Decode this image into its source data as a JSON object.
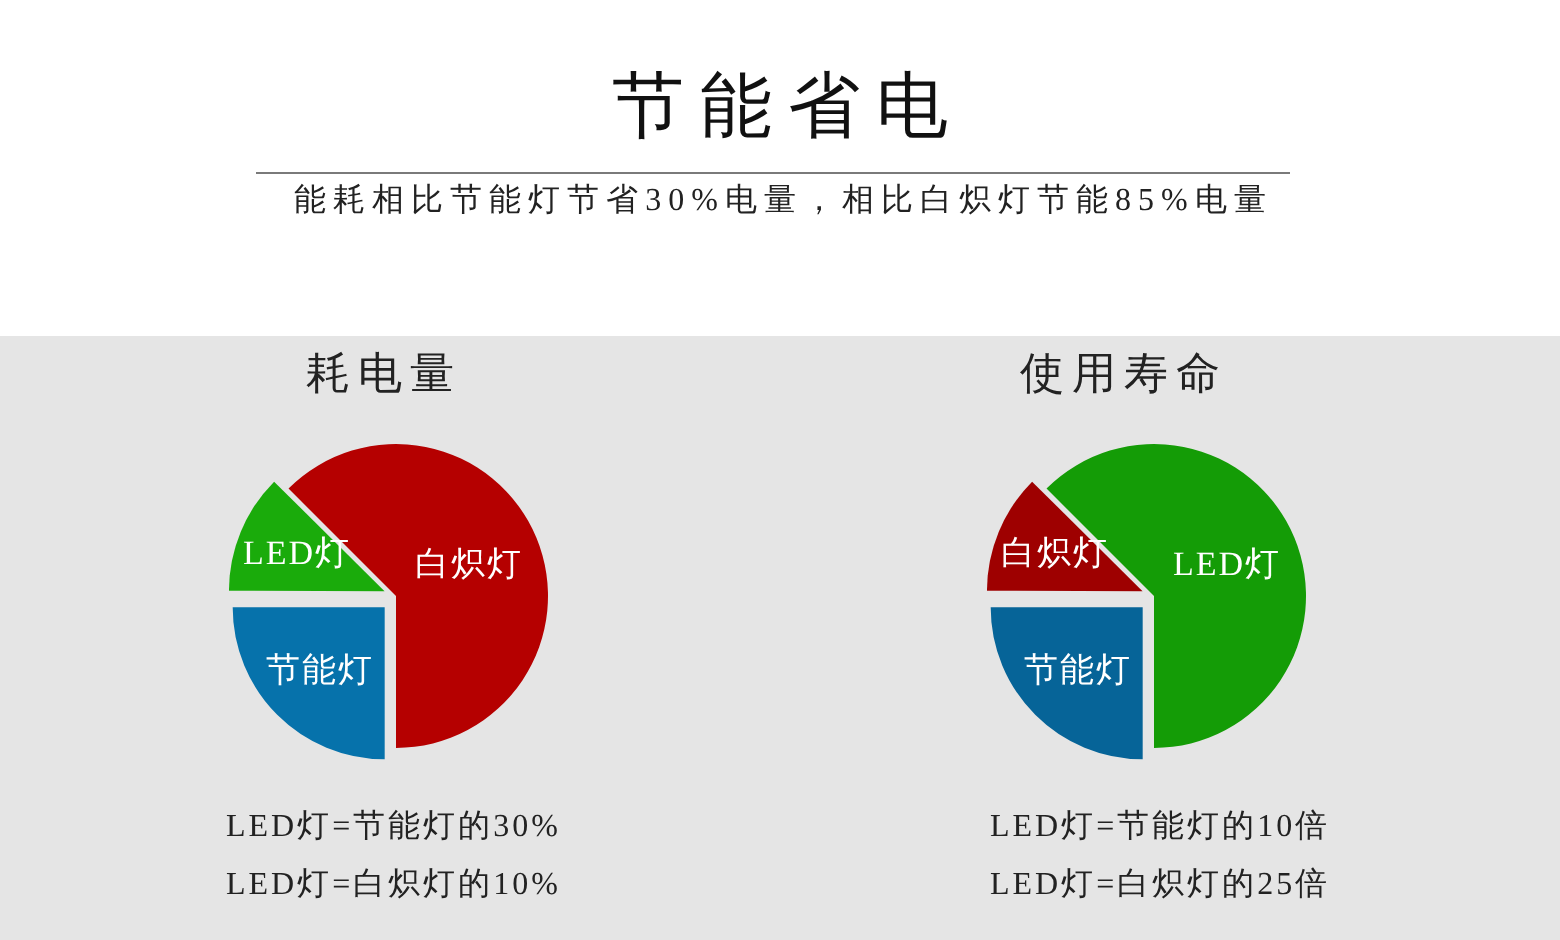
{
  "chart_data": [
    {
      "type": "other",
      "title": "节能省电",
      "subtitle": "能耗相比节能灯节省30%电量，相比白炽灯节能85%电量"
    },
    {
      "type": "pie",
      "title": "耗电量",
      "categories": [
        "白炽灯",
        "节能灯",
        "LED灯"
      ],
      "values": [
        62.5,
        25,
        12.5
      ],
      "colors": [
        "#b50000",
        "#0672ab",
        "#1aab0b"
      ],
      "annotations": [
        "LED灯=节能灯的30%",
        "LED灯=白炽灯的10%"
      ]
    },
    {
      "type": "pie",
      "title": "使用寿命",
      "categories": [
        "LED灯",
        "节能灯",
        "白炽灯"
      ],
      "values": [
        62.5,
        25,
        12.5
      ],
      "colors": [
        "#149c06",
        "#066498",
        "#9e0000"
      ],
      "annotations": [
        "LED灯=节能灯的10倍",
        "LED灯=白炽灯的25倍"
      ]
    }
  ]
}
